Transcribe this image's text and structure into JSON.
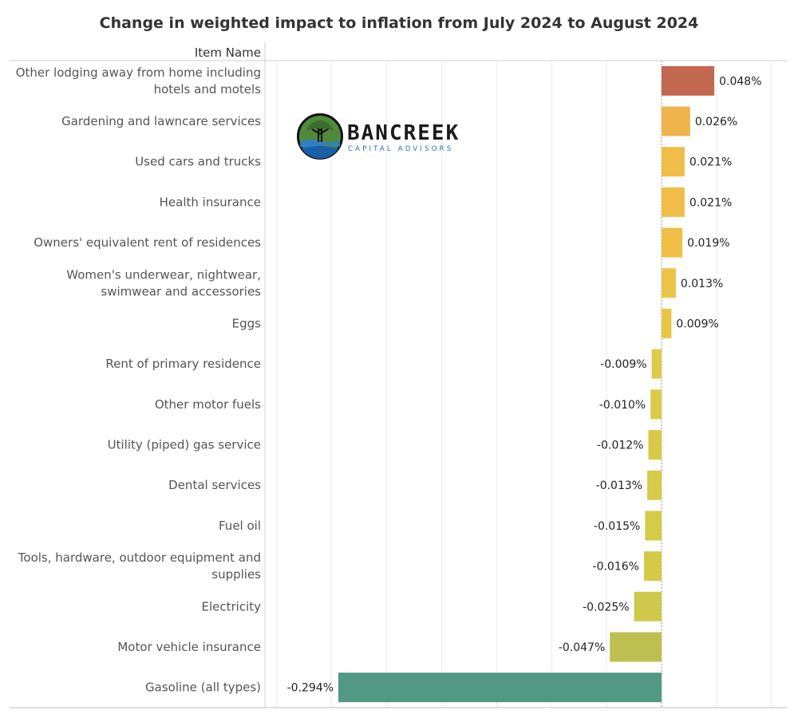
{
  "chart_data": {
    "type": "bar",
    "orientation": "horizontal",
    "title": "Change in weighted impact to inflation from July 2024 to August 2024",
    "row_header": "Item Name",
    "categories": [
      [
        "Other lodging away from home including",
        "hotels and motels"
      ],
      [
        "Gardening and lawncare services"
      ],
      [
        "Used cars and trucks"
      ],
      [
        "Health insurance"
      ],
      [
        "Owners' equivalent rent of residences"
      ],
      [
        "Women's underwear, nightwear,",
        "swimwear and accessories"
      ],
      [
        "Eggs"
      ],
      [
        "Rent of primary residence"
      ],
      [
        "Other motor fuels"
      ],
      [
        "Utility (piped) gas service"
      ],
      [
        "Dental services"
      ],
      [
        "Fuel oil"
      ],
      [
        "Tools, hardware, outdoor equipment and",
        "supplies"
      ],
      [
        "Electricity"
      ],
      [
        "Motor vehicle insurance"
      ],
      [
        "Gasoline (all types)"
      ]
    ],
    "values": [
      0.048,
      0.026,
      0.021,
      0.021,
      0.019,
      0.013,
      0.009,
      -0.009,
      -0.01,
      -0.012,
      -0.013,
      -0.015,
      -0.016,
      -0.025,
      -0.047,
      -0.294
    ],
    "value_labels": [
      "0.048%",
      "0.026%",
      "0.021%",
      "0.021%",
      "0.019%",
      "0.013%",
      "0.009%",
      "-0.009%",
      "-0.010%",
      "-0.012%",
      "-0.013%",
      "-0.015%",
      "-0.016%",
      "-0.025%",
      "-0.047%",
      "-0.294%"
    ],
    "colors": [
      "#c1684f",
      "#f0b44c",
      "#f0bd48",
      "#f0bd48",
      "#efbf47",
      "#ebc546",
      "#e8c746",
      "#dfcb48",
      "#dccb48",
      "#d9cb48",
      "#d7cb48",
      "#d4cb49",
      "#d3ca49",
      "#cec94c",
      "#bdc051",
      "#519983"
    ],
    "unit": "%",
    "xlim": [
      -0.3,
      0.115
    ],
    "grid": "vertical dotted"
  },
  "logo": {
    "name": "BANCREEK",
    "tagline": "CAPITAL ADVISORS"
  }
}
